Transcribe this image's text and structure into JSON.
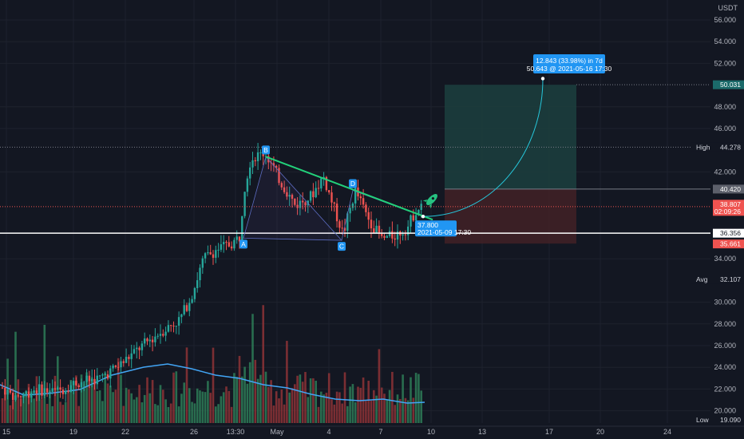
{
  "header": {
    "currency": "USDT"
  },
  "chart_data": {
    "type": "candlestick",
    "price_axis": {
      "ticks": [
        "56.000",
        "54.000",
        "52.000",
        "48.000",
        "46.000",
        "42.000",
        "34.000",
        "30.000",
        "28.000",
        "26.000",
        "24.000",
        "22.000",
        "20.000"
      ],
      "min": 19.09,
      "max": 57.3
    },
    "time_axis": {
      "labels": [
        "15",
        "19",
        "22",
        "26",
        "13:30",
        "May",
        "4",
        "7",
        "10",
        "13",
        "17",
        "20",
        "24"
      ]
    },
    "price_tags": {
      "high": {
        "label": "High",
        "value": "44.278"
      },
      "low": {
        "label": "Low",
        "value": "19.090"
      },
      "avg": {
        "label": "Avg",
        "value": "32.107"
      },
      "target": {
        "value": "50.031"
      },
      "stop": {
        "value": "40.420"
      },
      "current": {
        "value": "38.807",
        "countdown": "02:09:26"
      },
      "line": {
        "value": "36.356"
      },
      "entry": {
        "value": "35.661"
      }
    },
    "pattern_points": [
      "B",
      "C",
      "D",
      "A"
    ],
    "entry_callout": {
      "value": "37.800",
      "time": "2021-05-09 17:30"
    },
    "target_callout": {
      "line1": "12.843 (33.98%) in 7d",
      "line2": "50.643 @ 2021-05-16 17:30"
    },
    "colors": {
      "up": "#26a69a",
      "down": "#ef5350",
      "vol_up": "#2e7d57",
      "vol_down": "#8e3236",
      "ma": "#42a5f5",
      "trend": "#22d17a",
      "callout": "#2196f3",
      "profit_zone": "#1c3d3d",
      "loss_zone": "#3f2026",
      "bg": "#131722"
    }
  }
}
